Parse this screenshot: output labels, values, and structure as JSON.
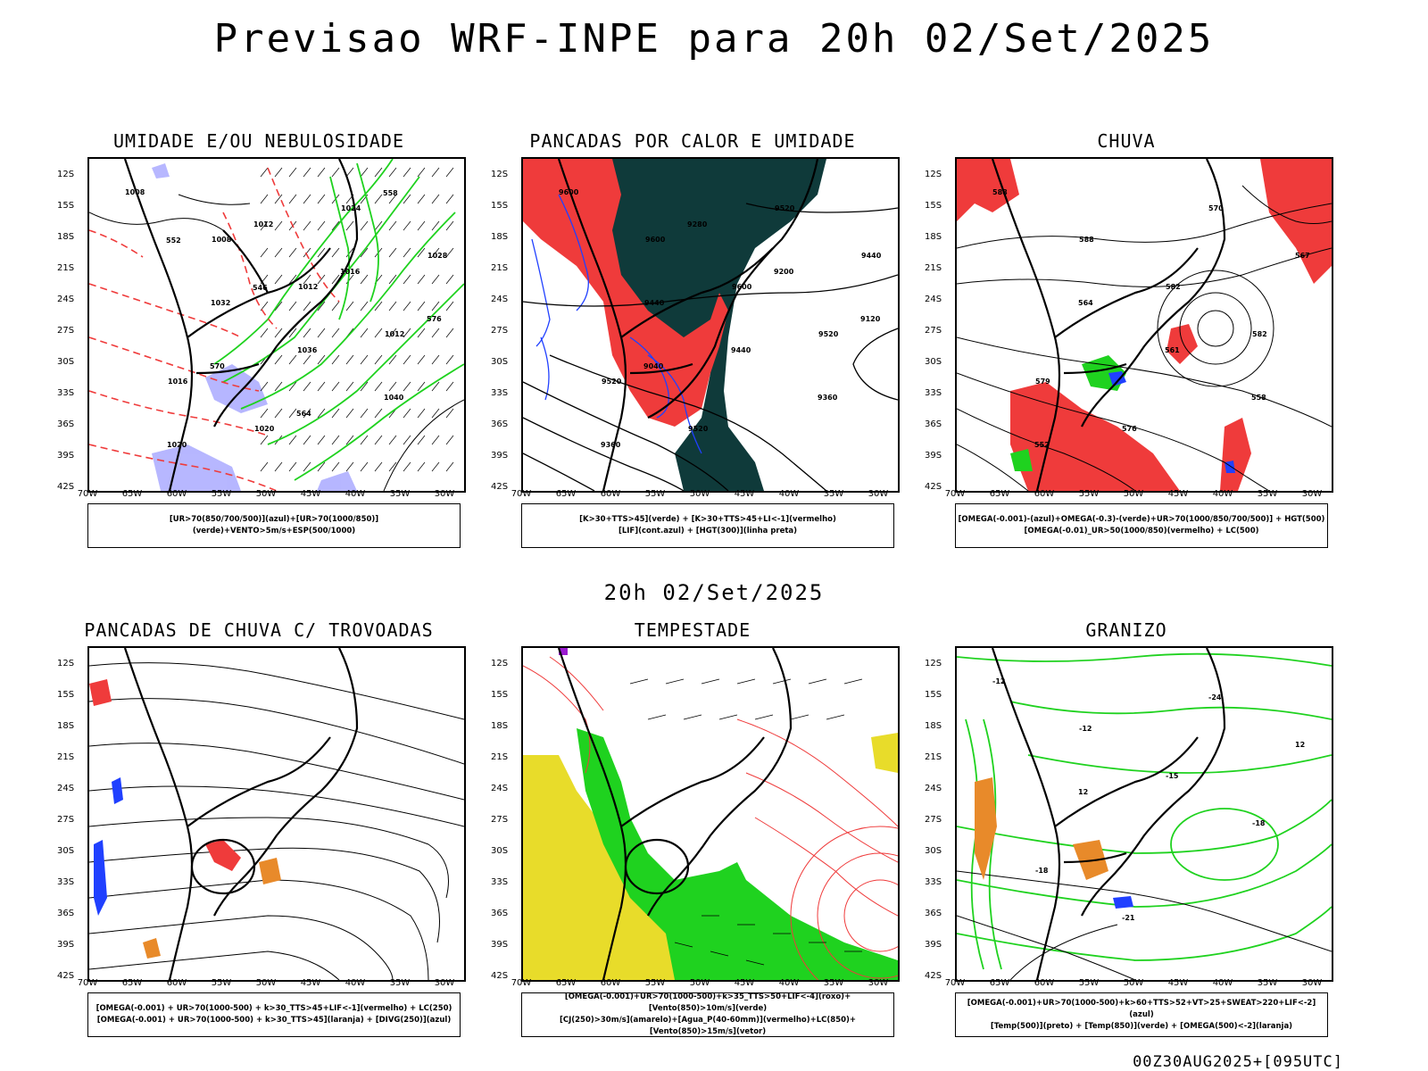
{
  "title": "Previsao WRF-INPE  para 20h 02/Set/2025",
  "subtitle": "20h 02/Set/2025",
  "footer": "00Z30AUG2025+[095UTC]",
  "axis": {
    "lat_labels": [
      "12S",
      "15S",
      "18S",
      "21S",
      "24S",
      "27S",
      "30S",
      "33S",
      "36S",
      "39S",
      "42S"
    ],
    "lon_labels": [
      "70W",
      "65W",
      "60W",
      "55W",
      "50W",
      "45W",
      "40W",
      "35W",
      "30W"
    ]
  },
  "colors": {
    "red": "#ef3b3b",
    "green": "#1fd21f",
    "blue": "#2040ff",
    "lavender": "#aaaaff",
    "dark_teal": "#0f3a3a",
    "yellow": "#e8dc2a",
    "orange": "#e88a2a",
    "purple": "#9a1ad0"
  },
  "panels": [
    {
      "title": "UMIDADE E/OU NEBULOSIDADE",
      "legend": [
        "[UR>70(850/700/500)](azul)+[UR>70(1000/850)](verde)+VENTO>5m/s+ESP(500/1000)"
      ],
      "contour_labels": [
        "1008",
        "1008",
        "1012",
        "1012",
        "1016",
        "1020",
        "1024",
        "1028",
        "1032",
        "1036",
        "1040",
        "1020",
        "1012",
        "1016",
        "576",
        "570",
        "564",
        "558",
        "552",
        "546"
      ]
    },
    {
      "title": "PANCADAS POR CALOR E UMIDADE",
      "legend": [
        "[K>30+TTS>45](verde)  +  [K>30+TTS>45+LI<-1](vermelho)",
        "[LIF](cont.azul)  +  [HGT(300)](linha preta)"
      ],
      "contour_labels": [
        "9600",
        "9600",
        "9600",
        "9520",
        "9520",
        "9520",
        "9520",
        "9440",
        "9440",
        "9440",
        "9360",
        "9360",
        "9280",
        "9200",
        "9120",
        "9040"
      ]
    },
    {
      "title": "CHUVA",
      "legend": [
        "[OMEGA(-0.001)-(azul)+OMEGA(-0.3)-(verde)+UR>70(1000/850/700/500)]  +  HGT(500)",
        "[OMEGA(-0.01)_UR>50(1000/850)(vermelho)  +  LC(500)"
      ],
      "contour_labels": [
        "588",
        "588",
        "582",
        "582",
        "579",
        "576",
        "570",
        "567",
        "564",
        "561",
        "558",
        "552"
      ]
    },
    {
      "title": "PANCADAS DE CHUVA C/ TROVOADAS",
      "legend": [
        "[OMEGA(-0.001)  +  UR>70(1000-500)  +  k>30_TTS>45+LIF<-1](vermelho)  +  LC(250)",
        "[OMEGA(-0.001)  +  UR>70(1000-500)  +  k>30_TTS>45](laranja)  +  [DIVG(250)](azul)"
      ],
      "contour_labels": []
    },
    {
      "title": "TEMPESTADE",
      "legend": [
        "[OMEGA(-0.001)+UR>70(1000-500)+k>35_TTS>50+LIF<-4](roxo)+[Vento(850)>10m/s](verde)",
        "[CJ(250)>30m/s](amarelo)+[Agua_P(40-60mm)](vermelho)+LC(850)+[Vento(850)>15m/s](vetor)"
      ],
      "contour_labels": []
    },
    {
      "title": "GRANIZO",
      "legend": [
        "[OMEGA(-0.001)+UR>70(1000-500)+k>60+TTS>52+VT>25+SWEAT>220+LIF<-2](azul)",
        "[Temp(500)](preto)  +  [Temp(850)](verde)  +  [OMEGA(500)<-2](laranja)"
      ],
      "contour_labels": [
        "-12",
        "-12",
        "-15",
        "-18",
        "-18",
        "-21",
        "-24",
        "12",
        "12"
      ]
    }
  ]
}
